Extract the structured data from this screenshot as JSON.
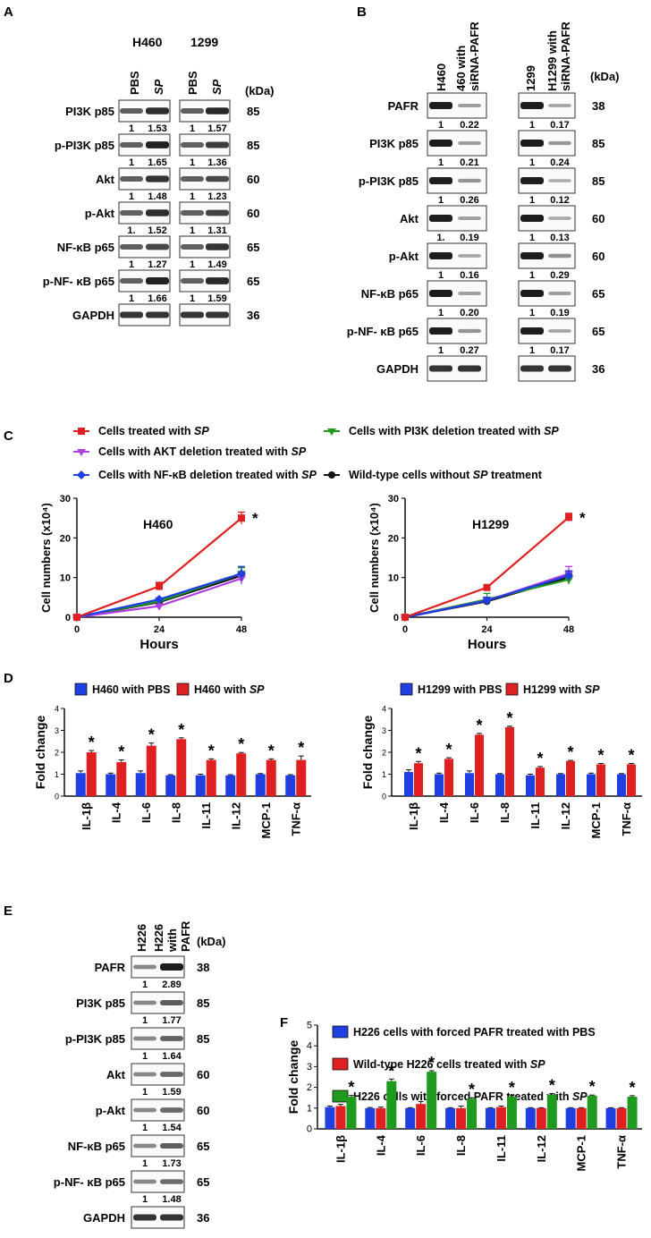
{
  "panels": {
    "A": "A",
    "B": "B",
    "C": "C",
    "D": "D",
    "E": "E",
    "F": "F"
  },
  "kda": "(kDa)",
  "colors": {
    "red": "#e02020",
    "blue": "#1f3fe0",
    "green": "#1e9a1e",
    "purple": "#b03fe0",
    "black": "#111111"
  },
  "panel_a": {
    "group_labels": [
      "H460",
      "1299"
    ],
    "lane_labels": [
      "PBS",
      "SP",
      "PBS",
      "SP"
    ],
    "rows": [
      {
        "name": "PI3K p85",
        "kda": "85",
        "values": [
          "1",
          "1.53",
          "1",
          "1.57"
        ]
      },
      {
        "name": "p-PI3K p85",
        "kda": "85",
        "values": [
          "1",
          "1.65",
          "1",
          "1.36"
        ]
      },
      {
        "name": "Akt",
        "kda": "60",
        "values": [
          "1",
          "1.48",
          "1",
          "1.23"
        ]
      },
      {
        "name": "p-Akt",
        "kda": "60",
        "values": [
          "1.",
          "1.52",
          "1",
          "1.31"
        ]
      },
      {
        "name": "NF-κB p65",
        "kda": "65",
        "values": [
          "1",
          "1.27",
          "1",
          "1.49"
        ]
      },
      {
        "name": "p-NF- κB p65",
        "kda": "65",
        "values": [
          "1",
          "1.66",
          "1",
          "1.59"
        ]
      },
      {
        "name": "GAPDH",
        "kda": "36",
        "values": []
      }
    ]
  },
  "panel_b": {
    "lane_labels": [
      "H460",
      "460 with",
      "siRNA-PAFR",
      "1299",
      "H1299 with",
      "siRNA-PAFR"
    ],
    "rows": [
      {
        "name": "PAFR",
        "kda": "38",
        "values": [
          "1",
          "0.22",
          "1",
          "0.17"
        ]
      },
      {
        "name": "PI3K p85",
        "kda": "85",
        "values": [
          "1",
          "0.21",
          "1",
          "0.24"
        ]
      },
      {
        "name": "p-PI3K p85",
        "kda": "85",
        "values": [
          "1",
          "0.26",
          "1",
          "0.12"
        ]
      },
      {
        "name": "Akt",
        "kda": "60",
        "values": [
          "1.",
          "0.19",
          "1",
          "0.13"
        ]
      },
      {
        "name": "p-Akt",
        "kda": "60",
        "values": [
          "1",
          "0.16",
          "1",
          "0.29"
        ]
      },
      {
        "name": "NF-κB p65",
        "kda": "65",
        "values": [
          "1",
          "0.20",
          "1",
          "0.19"
        ]
      },
      {
        "name": "p-NF- κB p65",
        "kda": "65",
        "values": [
          "1",
          "0.27",
          "1",
          "0.17"
        ]
      },
      {
        "name": "GAPDH",
        "kda": "36",
        "values": []
      }
    ]
  },
  "panel_e": {
    "lane_labels": [
      "H226",
      "H226",
      "with",
      "PAFR"
    ],
    "rows": [
      {
        "name": "PAFR",
        "kda": "38",
        "values": [
          "1",
          "2.89"
        ]
      },
      {
        "name": "PI3K p85",
        "kda": "85",
        "values": [
          "1",
          "1.77"
        ]
      },
      {
        "name": "p-PI3K p85",
        "kda": "85",
        "values": [
          "1",
          "1.64"
        ]
      },
      {
        "name": "Akt",
        "kda": "60",
        "values": [
          "1",
          "1.59"
        ]
      },
      {
        "name": "p-Akt",
        "kda": "60",
        "values": [
          "1",
          "1.54"
        ]
      },
      {
        "name": "NF-κB p65",
        "kda": "65",
        "values": [
          "1",
          "1.73"
        ]
      },
      {
        "name": "p-NF- κB p65",
        "kda": "65",
        "values": [
          "1",
          "1.48"
        ]
      },
      {
        "name": "GAPDH",
        "kda": "36",
        "values": []
      }
    ]
  },
  "c_legend": [
    {
      "pre": "Cells treated with ",
      "em": "SP",
      "post": "",
      "color": "#e02020",
      "marker": "square"
    },
    {
      "pre": "Cells with PI3K deletion treated with ",
      "em": "SP",
      "post": "",
      "color": "#1e9a1e",
      "marker": "triangle-down"
    },
    {
      "pre": "Cells with AKT deletion treated with ",
      "em": "SP",
      "post": "",
      "color": "#b03fe0",
      "marker": "triangle-down"
    },
    {
      "pre": "Cells with NF-κB deletion treated with ",
      "em": "SP",
      "post": "",
      "color": "#1f3fe0",
      "marker": "diamond"
    },
    {
      "pre": "Wild-type cells without ",
      "em": "SP",
      "post": " treatment",
      "color": "#111111",
      "marker": "circle"
    }
  ],
  "chart_data": [
    {
      "type": "line",
      "title": "H460",
      "xlabel": "Hours",
      "ylabel": "Cell numbers (x10⁴)",
      "x": [
        0,
        24,
        48
      ],
      "xlim": [
        0,
        48
      ],
      "ylim": [
        0,
        30
      ],
      "yticks": [
        0,
        10,
        20,
        30
      ],
      "xticks": [
        0,
        24,
        48
      ],
      "annotations": [
        {
          "text": "*",
          "series": "Cells treated with SP",
          "x": 48
        }
      ],
      "series": [
        {
          "name": "Cells treated with SP",
          "values": [
            0,
            7.8,
            25
          ],
          "err": [
            0,
            1,
            1.5
          ],
          "color": "#e02020",
          "marker": "square"
        },
        {
          "name": "Cells with PI3K deletion treated with SP",
          "values": [
            0,
            4,
            11
          ],
          "err": [
            0,
            0.4,
            1.5
          ],
          "color": "#1e9a1e",
          "marker": "triangle-down"
        },
        {
          "name": "Cells with AKT deletion treated with SP",
          "values": [
            0,
            2.8,
            9.8
          ],
          "err": [
            0,
            0.4,
            1.5
          ],
          "color": "#b03fe0",
          "marker": "triangle-down"
        },
        {
          "name": "Cells with NF-κB deletion treated with SP",
          "values": [
            0,
            4.5,
            11
          ],
          "err": [
            0,
            0.4,
            1.8
          ],
          "color": "#1f3fe0",
          "marker": "diamond"
        },
        {
          "name": "Wild-type cells without SP treatment",
          "values": [
            0,
            3.8,
            10.5
          ],
          "err": [
            0,
            0.4,
            1
          ],
          "color": "#111111",
          "marker": "circle"
        }
      ]
    },
    {
      "type": "line",
      "title": "H1299",
      "xlabel": "Hours",
      "ylabel": "Cell numbers (x10⁴)",
      "x": [
        0,
        24,
        48
      ],
      "xlim": [
        0,
        48
      ],
      "ylim": [
        0,
        30
      ],
      "yticks": [
        0,
        10,
        20,
        30
      ],
      "xticks": [
        0,
        24,
        48
      ],
      "annotations": [
        {
          "text": "*",
          "series": "Cells treated with SP",
          "x": 48
        }
      ],
      "series": [
        {
          "name": "Cells treated with SP",
          "values": [
            0,
            7.5,
            25.2
          ],
          "err": [
            0,
            0.5,
            1
          ],
          "color": "#e02020",
          "marker": "square"
        },
        {
          "name": "Cells with PI3K deletion treated with SP",
          "values": [
            0,
            4.5,
            9.5
          ],
          "err": [
            0,
            1.5,
            1.2
          ],
          "color": "#1e9a1e",
          "marker": "triangle-down"
        },
        {
          "name": "Cells with AKT deletion treated with SP",
          "values": [
            0,
            4.2,
            11
          ],
          "err": [
            0,
            0.8,
            1.8
          ],
          "color": "#b03fe0",
          "marker": "triangle-down"
        },
        {
          "name": "Cells with NF-κB deletion treated with SP",
          "values": [
            0,
            4.2,
            10.5
          ],
          "err": [
            0,
            0.8,
            1.2
          ],
          "color": "#1f3fe0",
          "marker": "diamond"
        },
        {
          "name": "Wild-type cells without SP treatment",
          "values": [
            0,
            4,
            10
          ],
          "err": [
            0,
            0.5,
            1
          ],
          "color": "#111111",
          "marker": "circle"
        }
      ]
    },
    {
      "type": "bar",
      "ylabel": "Fold change",
      "ylim": [
        0,
        4
      ],
      "yticks": [
        0,
        1,
        2,
        3,
        4
      ],
      "categories": [
        "IL-1β",
        "IL-4",
        "IL-6",
        "IL-8",
        "IL-11",
        "IL-12",
        "MCP-1",
        "TNF-α"
      ],
      "significance": "*",
      "series": [
        {
          "name": "H460 with PBS",
          "label_pre": "H460 with PBS",
          "label_em": "",
          "color": "#1f3fe0",
          "values": [
            1.05,
            1.0,
            1.05,
            0.95,
            0.95,
            0.95,
            1.0,
            0.95
          ],
          "err": [
            0.1,
            0.05,
            0.1,
            0.03,
            0.05,
            0.03,
            0.03,
            0.03
          ]
        },
        {
          "name": "H460 with SP",
          "label_pre": "H460 with ",
          "label_em": "SP",
          "color": "#e02020",
          "values": [
            2.0,
            1.55,
            2.3,
            2.6,
            1.65,
            1.95,
            1.65,
            1.65
          ],
          "err": [
            0.08,
            0.1,
            0.12,
            0.06,
            0.05,
            0.04,
            0.05,
            0.18
          ]
        }
      ]
    },
    {
      "type": "bar",
      "ylabel": "Fold change",
      "ylim": [
        0,
        4
      ],
      "yticks": [
        0,
        1,
        2,
        3,
        4
      ],
      "categories": [
        "IL-1β",
        "IL-4",
        "IL-6",
        "IL-8",
        "IL-11",
        "IL-12",
        "MCP-1",
        "TNF-α"
      ],
      "significance": "*",
      "series": [
        {
          "name": "H1299 with PBS",
          "label_pre": "H1299 with PBS",
          "label_em": "",
          "color": "#1f3fe0",
          "values": [
            1.1,
            1.0,
            1.05,
            1.0,
            0.95,
            1.0,
            1.0,
            1.0
          ],
          "err": [
            0.1,
            0.05,
            0.1,
            0.03,
            0.05,
            0.03,
            0.05,
            0.03
          ]
        },
        {
          "name": "H1299 with SP",
          "label_pre": "H1299 with ",
          "label_em": "SP",
          "color": "#e02020",
          "values": [
            1.5,
            1.7,
            2.8,
            3.15,
            1.3,
            1.6,
            1.45,
            1.45
          ],
          "err": [
            0.08,
            0.05,
            0.06,
            0.04,
            0.05,
            0.03,
            0.04,
            0.04
          ]
        }
      ]
    },
    {
      "type": "bar",
      "ylabel": "Fold change",
      "ylim": [
        0,
        5
      ],
      "yticks": [
        0,
        1,
        2,
        3,
        4,
        5
      ],
      "categories": [
        "IL-1β",
        "IL-4",
        "IL-6",
        "IL-8",
        "IL-11",
        "IL-12",
        "MCP-1",
        "TNF-α"
      ],
      "significance": "*",
      "series": [
        {
          "name": "H226 cells with forced PAFR treated with PBS",
          "label_pre": "H226 cells with forced PAFR treated with PBS",
          "label_em": "",
          "color": "#1f3fe0",
          "values": [
            1.05,
            1.0,
            1.0,
            1.0,
            1.0,
            1.0,
            1.0,
            1.0
          ],
          "err": [
            0.05,
            0.03,
            0.02,
            0.02,
            0.02,
            0.02,
            0.02,
            0.02
          ]
        },
        {
          "name": "Wild-type H226 cells treated with SP",
          "label_pre": "Wild-type H226 cells treated with ",
          "label_em": "SP",
          "color": "#e02020",
          "values": [
            1.1,
            1.0,
            1.2,
            1.0,
            1.05,
            1.0,
            1.0,
            1.0
          ],
          "err": [
            0.08,
            0.05,
            0.12,
            0.1,
            0.05,
            0.02,
            0.02,
            0.02
          ]
        },
        {
          "name": "H226 cells with forced PAFR treated with SP",
          "label_pre": "H226 cells with forced PAFR treated with ",
          "label_em": "SP",
          "color": "#1e9a1e",
          "values": [
            1.55,
            2.3,
            2.75,
            1.45,
            1.55,
            1.65,
            1.6,
            1.55
          ],
          "err": [
            0.06,
            0.1,
            0.05,
            0.05,
            0.05,
            0.05,
            0.03,
            0.05
          ]
        }
      ]
    }
  ]
}
